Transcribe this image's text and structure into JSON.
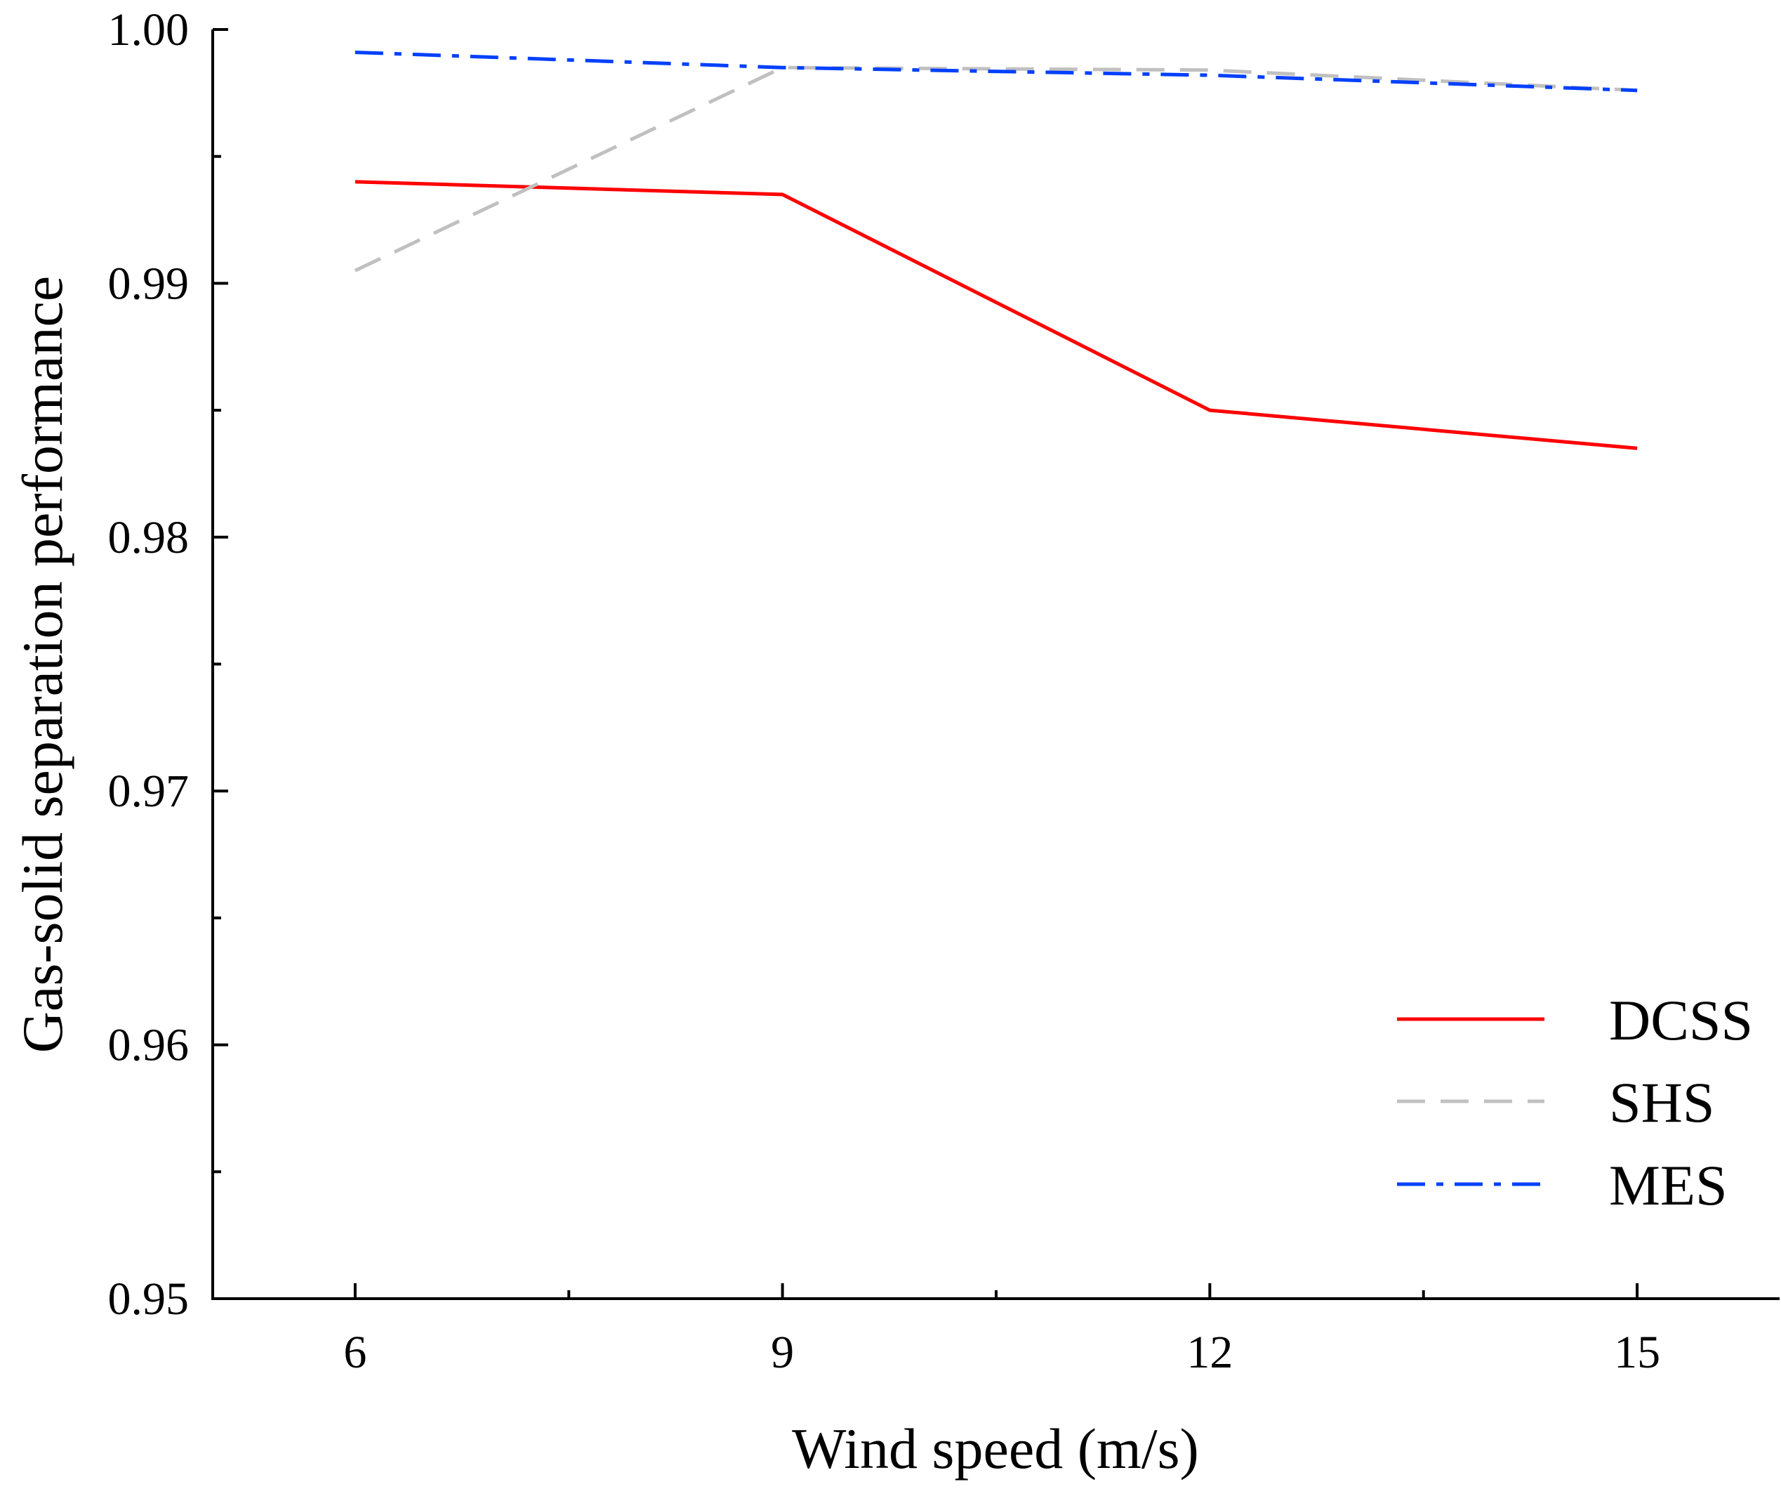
{
  "chart_data": {
    "type": "line",
    "title": "",
    "xlabel": "Wind speed (m/s)",
    "ylabel": "Gas-solid separation performance",
    "x": [
      6,
      9,
      12,
      15
    ],
    "xlim": [
      5,
      16
    ],
    "ylim": [
      0.95,
      1.0
    ],
    "xticks": [
      6,
      9,
      12,
      15
    ],
    "xtick_labels": [
      "6",
      "9",
      "12",
      "15"
    ],
    "xminor": [
      7.5,
      10.5,
      13.5
    ],
    "yticks": [
      0.95,
      0.96,
      0.97,
      0.98,
      0.99,
      1.0
    ],
    "ytick_labels": [
      "0.95",
      "0.96",
      "0.97",
      "0.98",
      "0.99",
      "1.00"
    ],
    "yminor": [
      0.955,
      0.965,
      0.975,
      0.985,
      0.995
    ],
    "grid": false,
    "legend_position": "bottom-right",
    "series": [
      {
        "name": "DCSS",
        "values": [
          0.994,
          0.9935,
          0.985,
          0.9835
        ],
        "color": "#ff0000",
        "style": "solid"
      },
      {
        "name": "SHS",
        "values": [
          0.9905,
          0.9985,
          0.9984,
          0.9976
        ],
        "color": "#c0c0c0",
        "style": "dashed"
      },
      {
        "name": "MES",
        "values": [
          0.9991,
          0.9985,
          0.9982,
          0.9976
        ],
        "color": "#0040ff",
        "style": "dashdot"
      }
    ]
  }
}
